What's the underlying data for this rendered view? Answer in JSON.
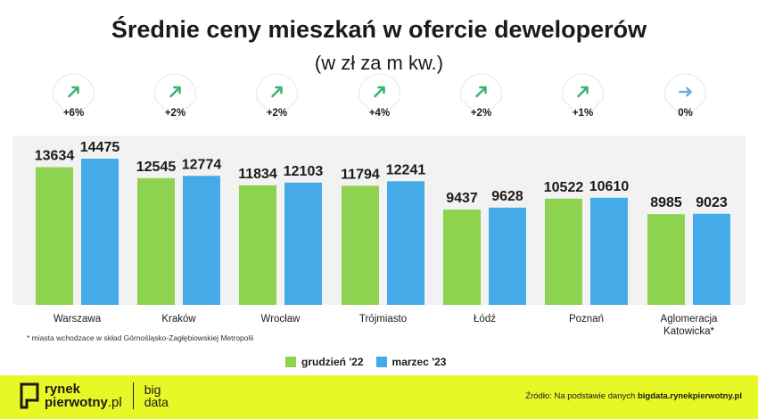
{
  "header": {
    "title": "Średnie ceny mieszkań w ofercie deweloperów",
    "subtitle": "(w zł za m kw.)"
  },
  "chart_data": {
    "type": "bar",
    "title": "Średnie ceny mieszkań w ofercie deweloperów",
    "subtitle": "(w zł za m kw.)",
    "categories": [
      "Warszawa",
      "Kraków",
      "Wrocław",
      "Trójmiasto",
      "Łódź",
      "Poznań",
      "Aglomeracja Katowicka*"
    ],
    "series": [
      {
        "name": "grudzień '22",
        "values": [
          13634,
          12545,
          11834,
          11794,
          9437,
          10522,
          8985
        ],
        "color": "#8dd34f"
      },
      {
        "name": "marzec '23",
        "values": [
          14475,
          12774,
          12103,
          12241,
          9628,
          10610,
          9023
        ],
        "color": "#45aae8"
      }
    ],
    "changes": [
      "+6%",
      "+2%",
      "+2%",
      "+4%",
      "+2%",
      "+1%",
      "0%"
    ],
    "change_directions": [
      "up",
      "up",
      "up",
      "up",
      "up",
      "up",
      "flat"
    ],
    "change_colors": {
      "up": "#3cb371",
      "flat": "#6aaee0"
    },
    "ylim": [
      0,
      16500
    ],
    "grid": false,
    "legend_position": "bottom-center"
  },
  "footnote": "* miasta wchodzace w skład Górnośląsko-Zagłębiowskiej Metropolii",
  "legend": {
    "items": [
      {
        "label": "grudzień '22",
        "color": "#8dd34f"
      },
      {
        "label": "marzec '23",
        "color": "#45aae8"
      }
    ]
  },
  "footer": {
    "logo_line1": "rynek",
    "logo_line2_bold": "pierwotny",
    "logo_line2_suffix": ".pl",
    "big_line1": "big",
    "big_line2": "data",
    "source_prefix": "Źródło: Na podstawie danych ",
    "source_bold": "bigdata.rynekpierwotny.pl",
    "background": "#e8f826"
  }
}
